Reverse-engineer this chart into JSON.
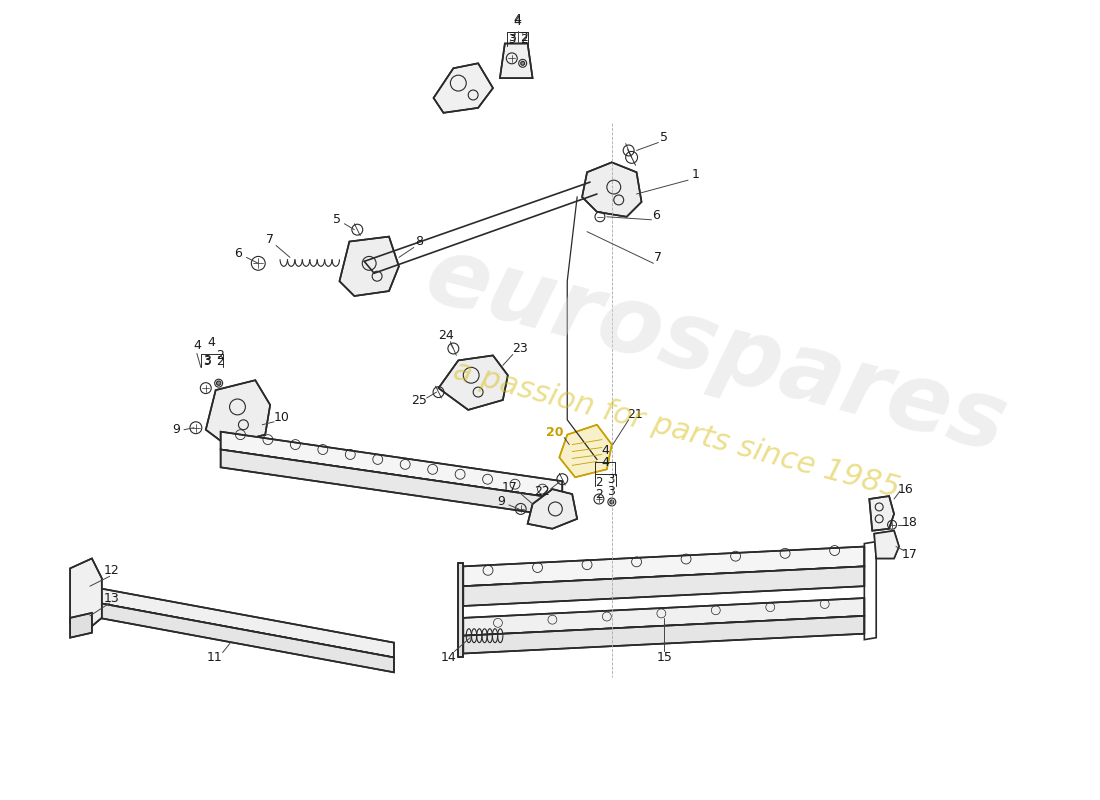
{
  "background_color": "#ffffff",
  "line_color": "#2a2a2a",
  "highlight_color": "#c8a000",
  "watermark1": "eurospares",
  "watermark2": "a passion for parts since 1985",
  "fig_width": 11.0,
  "fig_height": 8.0,
  "dpi": 100
}
